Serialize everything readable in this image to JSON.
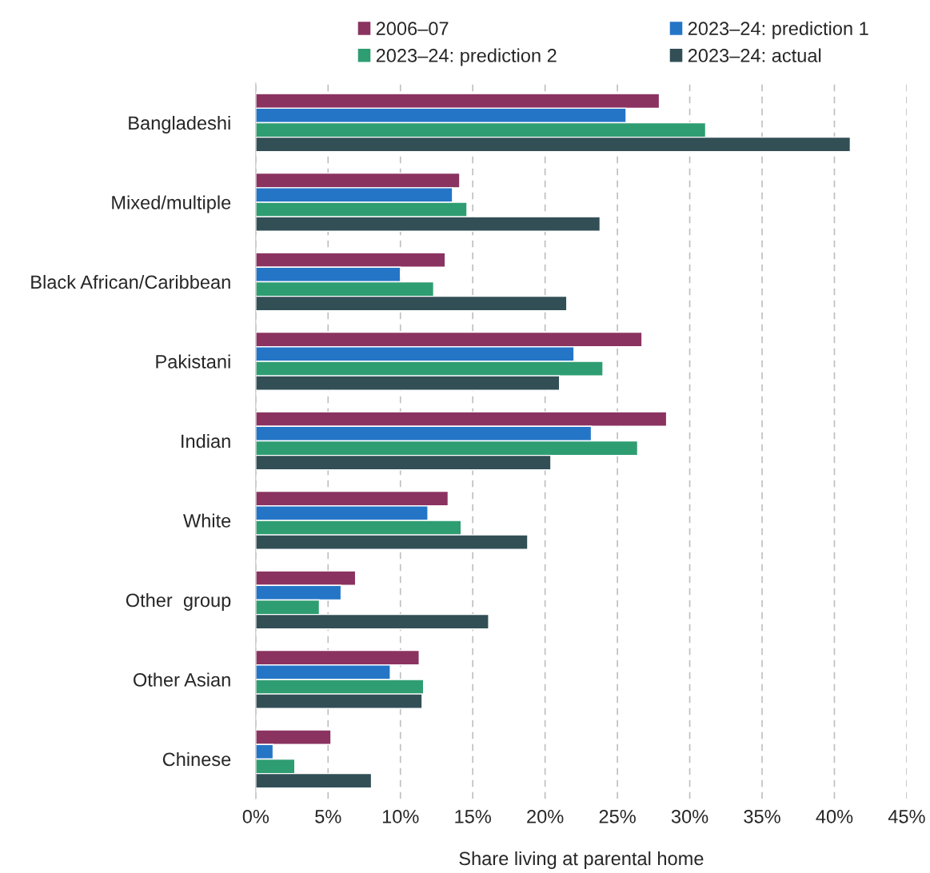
{
  "chart_data": {
    "type": "bar",
    "orientation": "horizontal",
    "xlabel": "Share living at parental home",
    "categories": [
      "Bangladeshi",
      "Mixed/multiple",
      "Black African/Caribbean",
      "Pakistani",
      "Indian",
      "White",
      "Other  group",
      "Other Asian",
      "Chinese"
    ],
    "series": [
      {
        "name": "2006–07",
        "color": "#8b3360",
        "values": [
          27.9,
          14.1,
          13.1,
          26.7,
          28.4,
          13.3,
          6.9,
          11.3,
          5.2
        ]
      },
      {
        "name": "2023–24: prediction 1",
        "color": "#2475c6",
        "values": [
          25.6,
          13.6,
          10.0,
          22.0,
          23.2,
          11.9,
          5.9,
          9.3,
          1.2
        ]
      },
      {
        "name": "2023–24: prediction 2",
        "color": "#2f9d72",
        "values": [
          31.1,
          14.6,
          12.3,
          24.0,
          26.4,
          14.2,
          4.4,
          11.6,
          2.7
        ]
      },
      {
        "name": "2023–24: actual",
        "color": "#324f56",
        "values": [
          41.1,
          23.8,
          21.5,
          21.0,
          20.4,
          18.8,
          16.1,
          11.5,
          8.0
        ]
      }
    ],
    "xlim": [
      0,
      45
    ],
    "xticks": [
      {
        "value": 0,
        "label": "0%"
      },
      {
        "value": 5,
        "label": "5%"
      },
      {
        "value": 10,
        "label": "10%"
      },
      {
        "value": 15,
        "label": "15%"
      },
      {
        "value": 20,
        "label": "20%"
      },
      {
        "value": 25,
        "label": "25%"
      },
      {
        "value": 30,
        "label": "30%"
      },
      {
        "value": 35,
        "label": "35%"
      },
      {
        "value": 40,
        "label": "40%"
      },
      {
        "value": 45,
        "label": "45%"
      }
    ],
    "grid": "x",
    "legend": "top"
  }
}
